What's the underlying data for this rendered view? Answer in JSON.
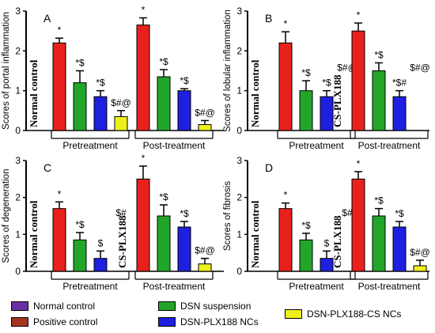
{
  "colors": {
    "normal_control": "#6a2fa0",
    "positive_control": "#e8211c",
    "dsn_suspension": "#22a62a",
    "dsn_plx188_ncs": "#1f1fe0",
    "dsn_plx188_cs_ncs": "#eef01e",
    "positive_control_legend": "#a83222"
  },
  "legend": {
    "items": [
      {
        "label": "Normal control",
        "color_key": "normal_control"
      },
      {
        "label": "Positive control",
        "color_key": "positive_control_legend"
      },
      {
        "label": "DSN suspension",
        "color_key": "dsn_suspension"
      },
      {
        "label": "DSN-PLX188 NCs",
        "color_key": "dsn_plx188_ncs"
      },
      {
        "label": "DSN-PLX188-CS NCs",
        "color_key": "dsn_plx188_cs_ncs"
      }
    ]
  },
  "chart_data": [
    {
      "type": "bar",
      "panel_label": "A",
      "ylabel": "Scores of portal inflammation",
      "ylim": [
        0,
        3
      ],
      "yticks": [
        0,
        1,
        2,
        3
      ],
      "groups": [
        {
          "label": "Pretreatment",
          "bars": [
            {
              "color_key": "positive_control",
              "value": 2.2,
              "err": 0.12,
              "label": "*"
            },
            {
              "color_key": "dsn_suspension",
              "value": 1.2,
              "err": 0.3,
              "label": "*$"
            },
            {
              "color_key": "dsn_plx188_ncs",
              "value": 0.85,
              "err": 0.15,
              "label": "*$"
            },
            {
              "color_key": "dsn_plx188_cs_ncs",
              "value": 0.35,
              "err": 0.15,
              "label": "$#@"
            }
          ]
        },
        {
          "label": "Post-treatment",
          "bars": [
            {
              "color_key": "positive_control",
              "value": 2.65,
              "err": 0.18,
              "label": "*"
            },
            {
              "color_key": "dsn_suspension",
              "value": 1.35,
              "err": 0.18,
              "label": "*$"
            },
            {
              "color_key": "dsn_plx188_ncs",
              "value": 1.0,
              "err": 0.05,
              "label": "*$"
            },
            {
              "color_key": "dsn_plx188_cs_ncs",
              "value": 0.15,
              "err": 0.1,
              "label": "$#@"
            }
          ]
        }
      ],
      "vertical_text": [
        {
          "text": "Normal control",
          "after_group": 0
        }
      ]
    },
    {
      "type": "bar",
      "panel_label": "B",
      "ylabel": "Scores of lobular inflammation",
      "ylim": [
        0,
        3
      ],
      "yticks": [
        0,
        1,
        2,
        3
      ],
      "groups": [
        {
          "label": "Pretreatment",
          "bars": [
            {
              "color_key": "positive_control",
              "value": 2.2,
              "err": 0.28,
              "label": "*"
            },
            {
              "color_key": "dsn_suspension",
              "value": 1.0,
              "err": 0.25,
              "label": "*$"
            },
            {
              "color_key": "dsn_plx188_ncs",
              "value": 0.85,
              "err": 0.15,
              "label": "*$"
            },
            {
              "color_key": "dsn_plx188_cs_ncs",
              "value": 0,
              "err": 0,
              "label": "$#@"
            }
          ]
        },
        {
          "label": "Post-treatment",
          "bars": [
            {
              "color_key": "positive_control",
              "value": 2.5,
              "err": 0.2,
              "label": "*"
            },
            {
              "color_key": "dsn_suspension",
              "value": 1.5,
              "err": 0.2,
              "label": "*$"
            },
            {
              "color_key": "dsn_plx188_ncs",
              "value": 0.85,
              "err": 0.15,
              "label": "*$#"
            },
            {
              "color_key": "dsn_plx188_cs_ncs",
              "value": 0,
              "err": 0,
              "label": "$#@"
            }
          ]
        }
      ],
      "vertical_text": [
        {
          "text": "Normal control",
          "after_group": 0
        },
        {
          "text": "CS-PLX188",
          "after_group": 1
        }
      ]
    },
    {
      "type": "bar",
      "panel_label": "C",
      "ylabel": "Scores of degeneration",
      "ylim": [
        0,
        3
      ],
      "yticks": [
        0,
        1,
        2,
        3
      ],
      "groups": [
        {
          "label": "Pretreatment",
          "bars": [
            {
              "color_key": "positive_control",
              "value": 1.7,
              "err": 0.18,
              "label": "*"
            },
            {
              "color_key": "dsn_suspension",
              "value": 0.85,
              "err": 0.2,
              "label": "*$"
            },
            {
              "color_key": "dsn_plx188_ncs",
              "value": 0.35,
              "err": 0.2,
              "label": "$"
            },
            {
              "color_key": "dsn_plx188_cs_ncs",
              "value": 0,
              "err": 0,
              "label": "$#"
            }
          ]
        },
        {
          "label": "Post-treatment",
          "bars": [
            {
              "color_key": "positive_control",
              "value": 2.5,
              "err": 0.35,
              "label": "*"
            },
            {
              "color_key": "dsn_suspension",
              "value": 1.5,
              "err": 0.3,
              "label": "*$"
            },
            {
              "color_key": "dsn_plx188_ncs",
              "value": 1.2,
              "err": 0.15,
              "label": "*$"
            },
            {
              "color_key": "dsn_plx188_cs_ncs",
              "value": 0.2,
              "err": 0.15,
              "label": "$#@"
            }
          ]
        }
      ],
      "vertical_text": [
        {
          "text": "Normal control",
          "after_group": 0
        },
        {
          "text": "CS-PLX188",
          "after_group": 1
        }
      ]
    },
    {
      "type": "bar",
      "panel_label": "D",
      "ylabel": "Scores of fibrosis",
      "ylim": [
        0,
        3
      ],
      "yticks": [
        0,
        1,
        2,
        3
      ],
      "groups": [
        {
          "label": "Pretreatment",
          "bars": [
            {
              "color_key": "positive_control",
              "value": 1.7,
              "err": 0.15,
              "label": "*"
            },
            {
              "color_key": "dsn_suspension",
              "value": 0.85,
              "err": 0.18,
              "label": "*$"
            },
            {
              "color_key": "dsn_plx188_ncs",
              "value": 0.35,
              "err": 0.2,
              "label": "$"
            },
            {
              "color_key": "dsn_plx188_cs_ncs",
              "value": 0,
              "err": 0,
              "label": "$#"
            }
          ]
        },
        {
          "label": "Post-treatment",
          "bars": [
            {
              "color_key": "positive_control",
              "value": 2.5,
              "err": 0.2,
              "label": "*"
            },
            {
              "color_key": "dsn_suspension",
              "value": 1.5,
              "err": 0.2,
              "label": "*$"
            },
            {
              "color_key": "dsn_plx188_ncs",
              "value": 1.2,
              "err": 0.15,
              "label": "*$"
            },
            {
              "color_key": "dsn_plx188_cs_ncs",
              "value": 0.15,
              "err": 0.15,
              "label": "$#@"
            }
          ]
        }
      ],
      "vertical_text": [
        {
          "text": "Normal control",
          "after_group": 0
        },
        {
          "text": "CS-PLX188",
          "after_group": 1
        }
      ]
    }
  ]
}
